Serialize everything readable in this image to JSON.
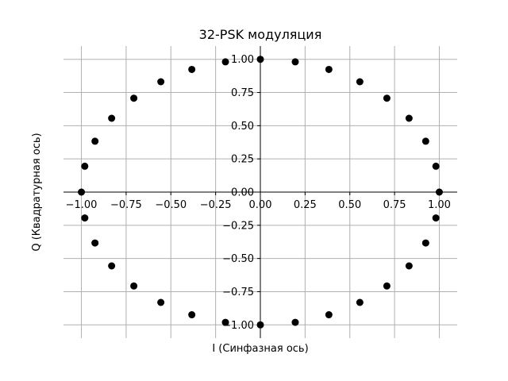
{
  "chart_data": {
    "type": "scatter",
    "title": "32-PSK модуляция",
    "xlabel": "I (Синфазная ось)",
    "ylabel": "Q (Квадратурная ось)",
    "xlim": [
      -1.1,
      1.1
    ],
    "ylim": [
      -1.1,
      1.1
    ],
    "grid": true,
    "spines": "centered at origin",
    "marker_color": "#000000",
    "grid_color": "#b0b0b0",
    "x_ticks": [
      {
        "value": -1.0,
        "label": "−1.00"
      },
      {
        "value": -0.75,
        "label": "−0.75"
      },
      {
        "value": -0.5,
        "label": "−0.50"
      },
      {
        "value": -0.25,
        "label": "−0.25"
      },
      {
        "value": 0.0,
        "label": "0.00"
      },
      {
        "value": 0.25,
        "label": "0.25"
      },
      {
        "value": 0.5,
        "label": "0.50"
      },
      {
        "value": 0.75,
        "label": "0.75"
      },
      {
        "value": 1.0,
        "label": "1.00"
      }
    ],
    "y_ticks": [
      {
        "value": 1.0,
        "label": "1.00"
      },
      {
        "value": 0.75,
        "label": "0.75"
      },
      {
        "value": 0.5,
        "label": "0.50"
      },
      {
        "value": 0.25,
        "label": "0.25"
      },
      {
        "value": 0.0,
        "label": "0.00"
      },
      {
        "value": -0.25,
        "label": "−0.25"
      },
      {
        "value": -0.5,
        "label": "−0.50"
      },
      {
        "value": -0.75,
        "label": "−0.75"
      },
      {
        "value": -1.0,
        "label": "−1.00"
      }
    ],
    "points": [
      {
        "x": 1.0,
        "y": 0.0
      },
      {
        "x": 0.981,
        "y": 0.195
      },
      {
        "x": 0.924,
        "y": 0.383
      },
      {
        "x": 0.831,
        "y": 0.556
      },
      {
        "x": 0.707,
        "y": 0.707
      },
      {
        "x": 0.556,
        "y": 0.831
      },
      {
        "x": 0.383,
        "y": 0.924
      },
      {
        "x": 0.195,
        "y": 0.981
      },
      {
        "x": 0.0,
        "y": 1.0
      },
      {
        "x": -0.195,
        "y": 0.981
      },
      {
        "x": -0.383,
        "y": 0.924
      },
      {
        "x": -0.556,
        "y": 0.831
      },
      {
        "x": -0.707,
        "y": 0.707
      },
      {
        "x": -0.831,
        "y": 0.556
      },
      {
        "x": -0.924,
        "y": 0.383
      },
      {
        "x": -0.981,
        "y": 0.195
      },
      {
        "x": -1.0,
        "y": 0.0
      },
      {
        "x": -0.981,
        "y": -0.195
      },
      {
        "x": -0.924,
        "y": -0.383
      },
      {
        "x": -0.831,
        "y": -0.556
      },
      {
        "x": -0.707,
        "y": -0.707
      },
      {
        "x": -0.556,
        "y": -0.831
      },
      {
        "x": -0.383,
        "y": -0.924
      },
      {
        "x": -0.195,
        "y": -0.981
      },
      {
        "x": 0.0,
        "y": -1.0
      },
      {
        "x": 0.195,
        "y": -0.981
      },
      {
        "x": 0.383,
        "y": -0.924
      },
      {
        "x": 0.556,
        "y": -0.831
      },
      {
        "x": 0.707,
        "y": -0.707
      },
      {
        "x": 0.831,
        "y": -0.556
      },
      {
        "x": 0.924,
        "y": -0.383
      },
      {
        "x": 0.981,
        "y": -0.195
      }
    ]
  }
}
